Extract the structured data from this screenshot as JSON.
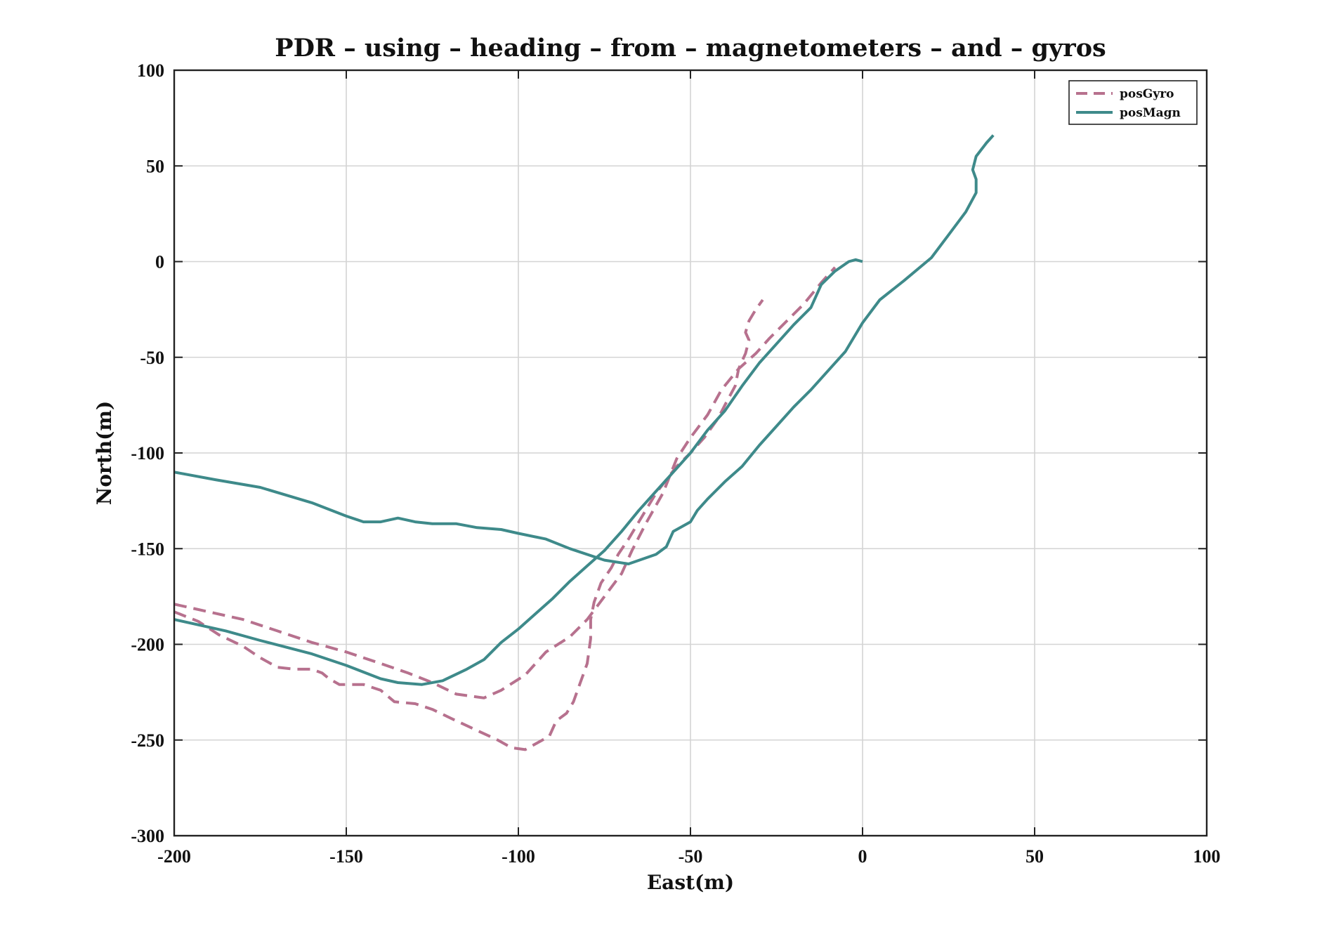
{
  "chart_data": {
    "type": "line",
    "title": "PDR – using – heading – from – magnetometers – and – gyros",
    "xlabel": "East(m)",
    "ylabel": "North(m)",
    "xlim": [
      -200,
      100
    ],
    "ylim": [
      -300,
      100
    ],
    "xticks": [
      -200,
      -150,
      -100,
      -50,
      0,
      50,
      100
    ],
    "yticks": [
      -300,
      -250,
      -200,
      -150,
      -100,
      -50,
      0,
      50,
      100
    ],
    "xtick_labels": [
      "-200",
      "-150",
      "-100",
      "-50",
      "0",
      "50",
      "100"
    ],
    "ytick_labels": [
      "-300",
      "-250",
      "-200",
      "-150",
      "-100",
      "-50",
      "0",
      "50",
      "100"
    ],
    "grid": true,
    "legend_position": "top-right",
    "series": [
      {
        "name": "posGyro",
        "color": "#b7718e",
        "style": "dashed",
        "segments": [
          [
            [
              -200,
              -179
            ],
            [
              -190,
              -183
            ],
            [
              -180,
              -187
            ],
            [
              -170,
              -193
            ],
            [
              -160,
              -199
            ],
            [
              -150,
              -204
            ],
            [
              -140,
              -210
            ],
            [
              -132,
              -215
            ],
            [
              -125,
              -220
            ],
            [
              -118,
              -226
            ],
            [
              -110,
              -228
            ],
            [
              -105,
              -224
            ],
            [
              -98,
              -216
            ],
            [
              -95,
              -210
            ],
            [
              -92,
              -204
            ],
            [
              -85,
              -196
            ],
            [
              -80,
              -187
            ],
            [
              -75,
              -175
            ],
            [
              -70,
              -163
            ],
            [
              -67,
              -151
            ],
            [
              -63,
              -137
            ],
            [
              -58,
              -121
            ],
            [
              -54,
              -103
            ],
            [
              -50,
              -92
            ],
            [
              -45,
              -80
            ],
            [
              -41,
              -67
            ],
            [
              -36,
              -56
            ],
            [
              -31,
              -48
            ],
            [
              -27,
              -40
            ],
            [
              -22,
              -31
            ],
            [
              -17,
              -22
            ],
            [
              -12,
              -11
            ],
            [
              -8,
              -3
            ]
          ],
          [
            [
              -200,
              -183
            ],
            [
              -193,
              -188
            ],
            [
              -187,
              -195
            ],
            [
              -180,
              -201
            ],
            [
              -175,
              -207
            ],
            [
              -170,
              -212
            ],
            [
              -165,
              -213
            ],
            [
              -160,
              -213
            ],
            [
              -157,
              -215
            ],
            [
              -155,
              -218
            ],
            [
              -152,
              -221
            ],
            [
              -145,
              -221
            ],
            [
              -140,
              -224
            ],
            [
              -136,
              -230
            ],
            [
              -130,
              -231
            ],
            [
              -125,
              -234
            ],
            [
              -118,
              -240
            ],
            [
              -112,
              -245
            ],
            [
              -106,
              -250
            ],
            [
              -102,
              -254
            ],
            [
              -98,
              -255
            ],
            [
              -94,
              -251
            ],
            [
              -91,
              -248
            ],
            [
              -89,
              -240
            ],
            [
              -86,
              -236
            ],
            [
              -84,
              -230
            ],
            [
              -82,
              -220
            ],
            [
              -80,
              -210
            ],
            [
              -79,
              -197
            ],
            [
              -79,
              -187
            ],
            [
              -78,
              -178
            ],
            [
              -76,
              -168
            ],
            [
              -73,
              -160
            ],
            [
              -71,
              -153
            ],
            [
              -68,
              -145
            ],
            [
              -64,
              -133
            ],
            [
              -60,
              -121
            ],
            [
              -57,
              -114
            ],
            [
              -54,
              -107
            ],
            [
              -50,
              -100
            ],
            [
              -46,
              -92
            ],
            [
              -42,
              -82
            ],
            [
              -40,
              -75
            ],
            [
              -37,
              -65
            ],
            [
              -36,
              -56
            ],
            [
              -34,
              -48
            ],
            [
              -33,
              -41
            ],
            [
              -34,
              -37
            ],
            [
              -33,
              -31
            ],
            [
              -31,
              -25
            ],
            [
              -29,
              -20
            ]
          ]
        ]
      },
      {
        "name": "posMagn",
        "color": "#3e8a8a",
        "style": "solid",
        "segments": [
          [
            [
              -200,
              -110
            ],
            [
              -188,
              -114
            ],
            [
              -175,
              -118
            ],
            [
              -160,
              -126
            ],
            [
              -150,
              -133
            ],
            [
              -145,
              -136
            ],
            [
              -140,
              -136
            ],
            [
              -135,
              -134
            ],
            [
              -130,
              -136
            ],
            [
              -125,
              -137
            ],
            [
              -118,
              -137
            ],
            [
              -112,
              -139
            ],
            [
              -105,
              -140
            ],
            [
              -100,
              -142
            ],
            [
              -92,
              -145
            ],
            [
              -85,
              -150
            ],
            [
              -75,
              -156
            ],
            [
              -68,
              -158
            ],
            [
              -60,
              -153
            ],
            [
              -57,
              -149
            ],
            [
              -55,
              -141
            ],
            [
              -50,
              -136
            ],
            [
              -48,
              -130
            ],
            [
              -45,
              -124
            ],
            [
              -40,
              -115
            ],
            [
              -35,
              -107
            ],
            [
              -30,
              -96
            ],
            [
              -25,
              -86
            ],
            [
              -20,
              -76
            ],
            [
              -15,
              -67
            ],
            [
              -10,
              -57
            ],
            [
              -5,
              -47
            ],
            [
              0,
              -32
            ],
            [
              5,
              -20
            ],
            [
              12,
              -10
            ],
            [
              20,
              2
            ],
            [
              25,
              14
            ],
            [
              30,
              26
            ],
            [
              33,
              36
            ],
            [
              33,
              43
            ],
            [
              32,
              48
            ],
            [
              33,
              55
            ],
            [
              36,
              62
            ],
            [
              38,
              66
            ]
          ],
          [
            [
              -200,
              -187
            ],
            [
              -185,
              -193
            ],
            [
              -175,
              -198
            ],
            [
              -160,
              -205
            ],
            [
              -150,
              -211
            ],
            [
              -140,
              -218
            ],
            [
              -135,
              -220
            ],
            [
              -128,
              -221
            ],
            [
              -122,
              -219
            ],
            [
              -115,
              -213
            ],
            [
              -110,
              -208
            ],
            [
              -105,
              -199
            ],
            [
              -100,
              -192
            ],
            [
              -95,
              -184
            ],
            [
              -90,
              -176
            ],
            [
              -85,
              -167
            ],
            [
              -80,
              -159
            ],
            [
              -75,
              -151
            ],
            [
              -70,
              -141
            ],
            [
              -65,
              -130
            ],
            [
              -60,
              -120
            ],
            [
              -55,
              -110
            ],
            [
              -50,
              -100
            ],
            [
              -45,
              -88
            ],
            [
              -40,
              -78
            ],
            [
              -35,
              -65
            ],
            [
              -30,
              -53
            ],
            [
              -25,
              -43
            ],
            [
              -20,
              -33
            ],
            [
              -15,
              -24
            ],
            [
              -12,
              -12
            ],
            [
              -8,
              -5
            ],
            [
              -4,
              0
            ],
            [
              -2,
              1
            ],
            [
              0,
              0
            ]
          ]
        ]
      }
    ]
  }
}
